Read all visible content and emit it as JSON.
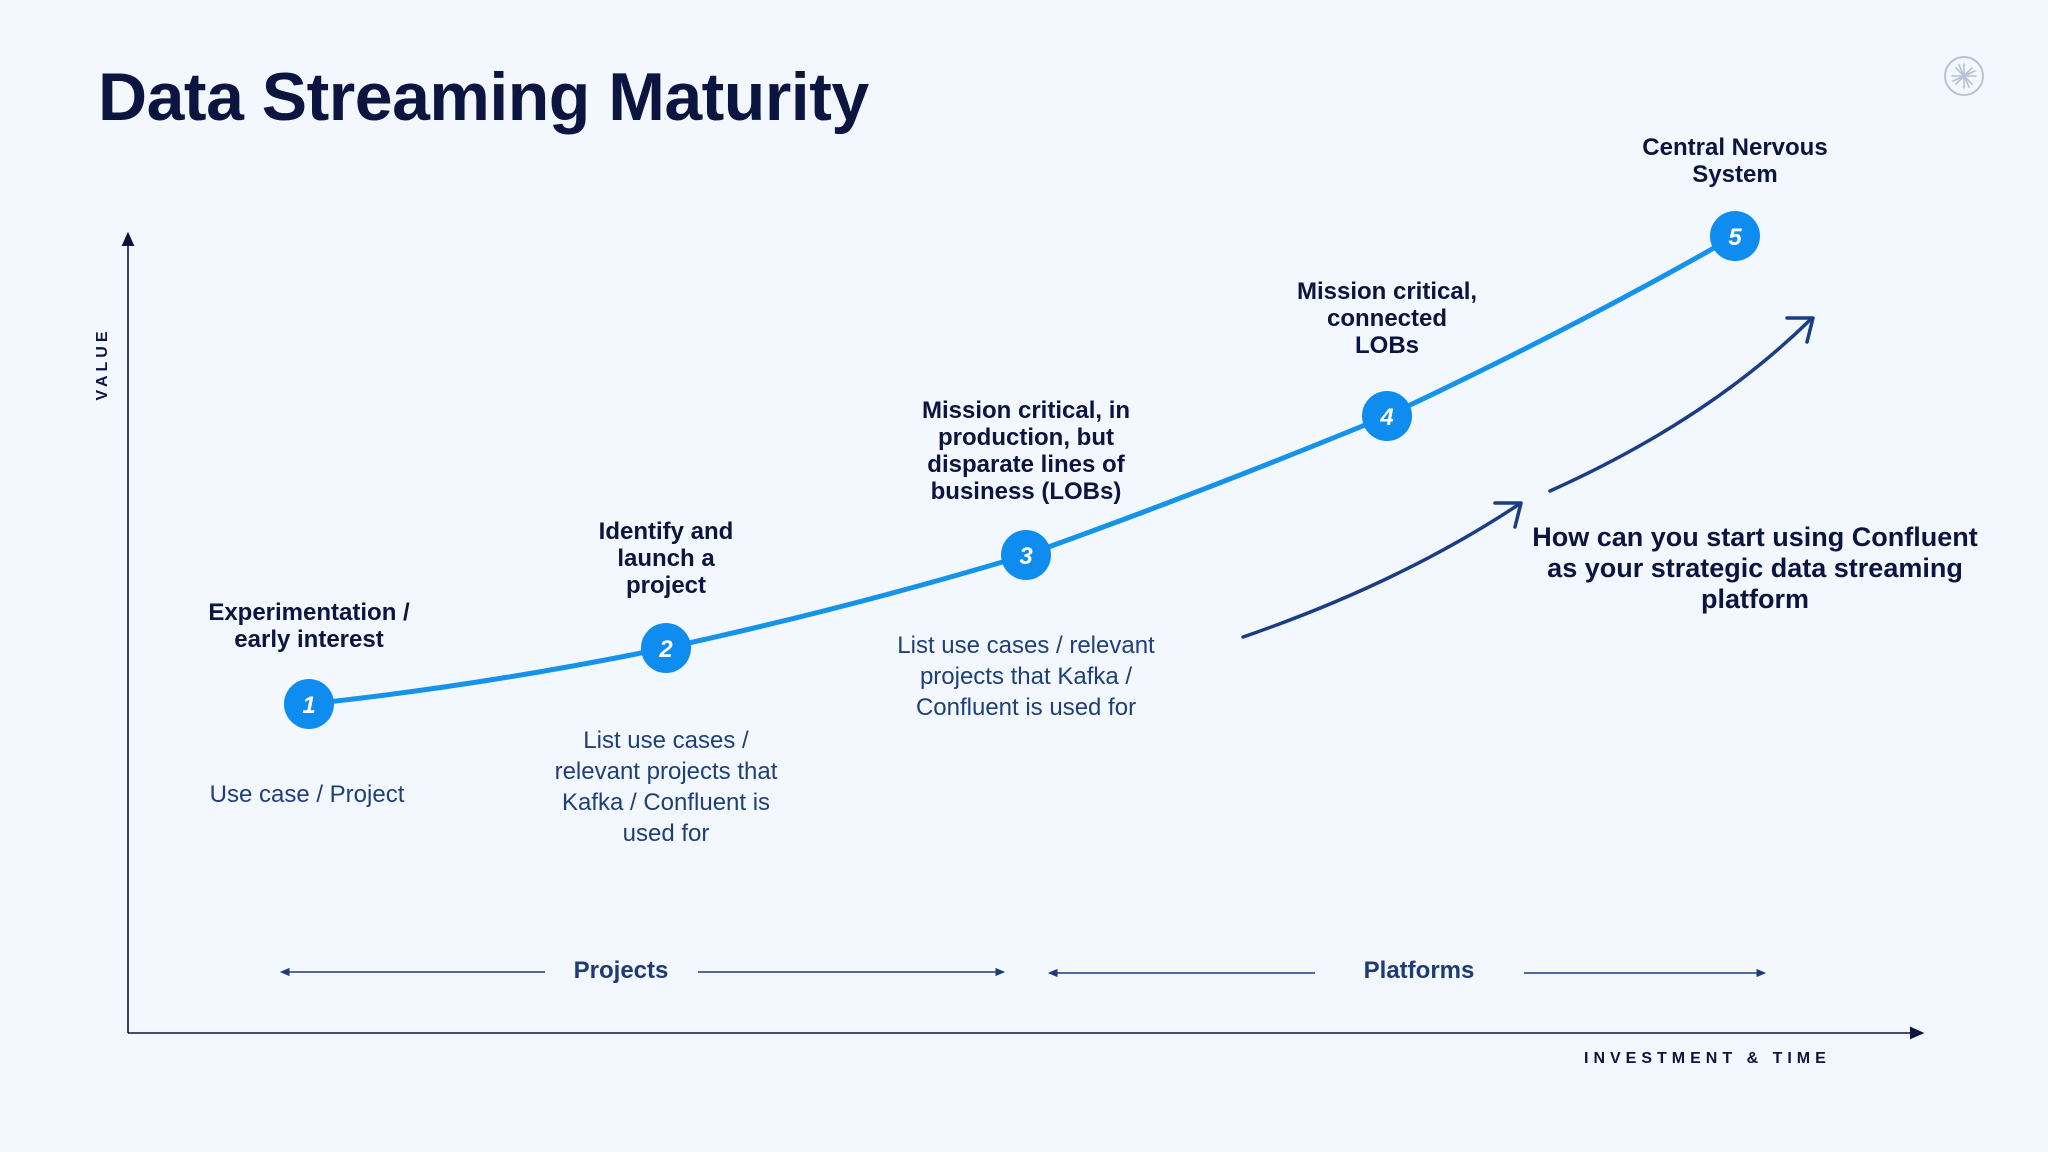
{
  "title": "Data Streaming Maturity",
  "axes": {
    "y_label": "VALUE",
    "x_label": "INVESTMENT & TIME"
  },
  "stages": [
    {
      "number": "1",
      "title": "Experimentation / early interest",
      "description": "Use case / Project"
    },
    {
      "number": "2",
      "title": "Identify and launch a project",
      "description": "List use cases / relevant projects that Kafka / Confluent is used for"
    },
    {
      "number": "3",
      "title": "Mission critical, in production, but disparate lines of business (LOBs)",
      "description": "List use cases / relevant projects that Kafka / Confluent is used for"
    },
    {
      "number": "4",
      "title": "Mission critical, connected LOBs",
      "description": ""
    },
    {
      "number": "5",
      "title": "Central Nervous System",
      "description": ""
    }
  ],
  "phases": {
    "projects": "Projects",
    "platforms": "Platforms"
  },
  "cta": "How can you start using Confluent as your strategic data streaming platform",
  "colors": {
    "background": "#f3f7fe",
    "curve": "#1593ea",
    "node": "#0f8cef",
    "arrow": "#1b3d86",
    "title": "#0c1440",
    "description": "#1f3f7a"
  },
  "icons": {
    "logo": "confluent-logo-icon"
  }
}
